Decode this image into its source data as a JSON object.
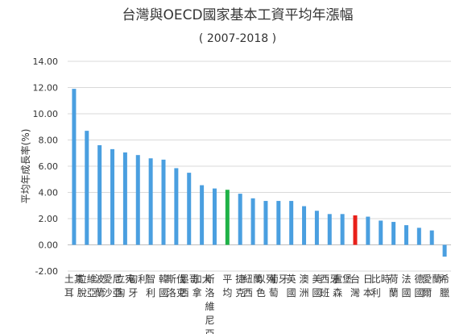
{
  "chart_data": {
    "type": "bar",
    "title": "台灣與OECD國家基本工資平均年漲幅",
    "subtitle": "( 2007-2018 )",
    "xlabel": "",
    "ylabel": "平均年成長率(%)",
    "ylim": [
      -2,
      14
    ],
    "yticks": [
      "-2.00",
      "0.00",
      "2.00",
      "4.00",
      "6.00",
      "8.00",
      "10.00",
      "12.00",
      "14.00"
    ],
    "grid": true,
    "legend": "none",
    "categories": [
      "土耳其",
      "拉脫維亞",
      "波蘭",
      "愛沙尼亞",
      "立陶宛",
      "匈牙利",
      "智利",
      "韓國",
      "斯洛伐克",
      "墨西哥",
      "加拿大",
      "斯洛維尼亞",
      "平均",
      "捷克",
      "紐西蘭",
      "以色列",
      "葡萄牙",
      "英國",
      "澳洲",
      "美國",
      "西班牙",
      "盧森堡",
      "台灣",
      "日本",
      "比利時",
      "荷蘭",
      "法國",
      "德國",
      "愛爾蘭",
      "希臘"
    ],
    "values": [
      11.9,
      8.7,
      7.6,
      7.3,
      7.05,
      6.85,
      6.6,
      6.5,
      5.85,
      5.5,
      4.55,
      4.3,
      4.2,
      3.9,
      3.55,
      3.35,
      3.35,
      3.35,
      2.95,
      2.6,
      2.35,
      2.35,
      2.25,
      2.15,
      1.85,
      1.75,
      1.5,
      1.3,
      1.1,
      -0.9
    ],
    "colors": {
      "default": "#4a9fe0",
      "average": "#1fb247",
      "taiwan": "#e8201a"
    },
    "highlight": {
      "平均": "average",
      "台灣": "taiwan"
    }
  }
}
